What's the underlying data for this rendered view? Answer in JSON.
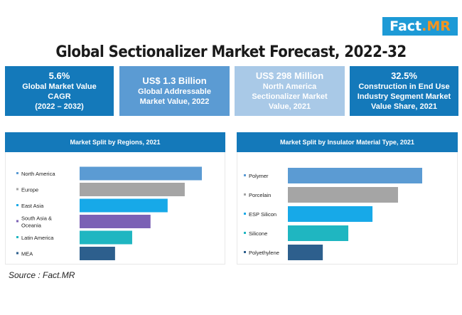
{
  "logo": {
    "main": "Fact",
    "accent": ".MR"
  },
  "title": "Global Sectionalizer Market Forecast, 2022-32",
  "stats": [
    {
      "value": "5.6%",
      "label1": "Global Market Value",
      "label2": "CAGR",
      "label3": "(2022 – 2032)"
    },
    {
      "value": "US$ 1.3 Billion",
      "label1": "Global Addressable",
      "label2": "Market Value, 2022",
      "label3": ""
    },
    {
      "value": "US$ 298 Million",
      "label1": "North America",
      "label2": "Sectionalizer Market",
      "label3": "Value, 2021"
    },
    {
      "value": "32.5%",
      "label1": "Construction  in End Use",
      "label2": "Industry Segment Market",
      "label3": "Value Share, 2021"
    }
  ],
  "source": "Source : Fact.MR",
  "chart_data": [
    {
      "type": "bar",
      "orientation": "horizontal",
      "title": "Market Split by Regions, 2021",
      "categories": [
        "North America",
        "Europe",
        "East Asia",
        "South Asia & Oceania",
        "Latin America",
        "MEA"
      ],
      "category_lines": [
        [
          "North America"
        ],
        [
          "Europe"
        ],
        [
          "East Asia"
        ],
        [
          "South Asia &",
          "Oceania"
        ],
        [
          "Latin America"
        ],
        [
          "MEA"
        ]
      ],
      "values": [
        100,
        86,
        72,
        58,
        43,
        29
      ],
      "colors": [
        "#5b9bd3",
        "#a5a5a5",
        "#17a9e8",
        "#7b61b5",
        "#1fb6c1",
        "#2d5f8d"
      ],
      "xlim": [
        0,
        100
      ]
    },
    {
      "type": "bar",
      "orientation": "horizontal",
      "title": "Market Split by Insulator Material Type, 2021",
      "categories": [
        "Polymer",
        "Porcelain",
        "ESP Silicon",
        "Silicone",
        "Polyethylene"
      ],
      "category_lines": [
        [
          "Polymer"
        ],
        [
          "Porcelain"
        ],
        [
          "ESP Silicon"
        ],
        [
          "Silicone"
        ],
        [
          "Polyethylene"
        ]
      ],
      "values": [
        100,
        82,
        63,
        45,
        26
      ],
      "colors": [
        "#5b9bd3",
        "#a5a5a5",
        "#17a9e8",
        "#1fb6c1",
        "#2d5f8d"
      ],
      "xlim": [
        0,
        100
      ]
    }
  ]
}
